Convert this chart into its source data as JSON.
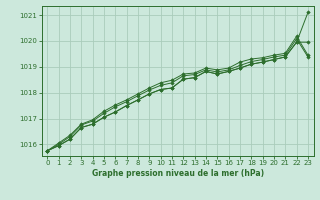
{
  "title": "Graphe pression niveau de la mer (hPa)",
  "background_color": "#cce8dc",
  "grid_color": "#aaccbb",
  "line_color": "#2d6e2d",
  "marker_color": "#2d6e2d",
  "xlim": [
    -0.5,
    23.5
  ],
  "ylim": [
    1015.55,
    1021.35
  ],
  "yticks": [
    1016,
    1017,
    1018,
    1019,
    1020,
    1021
  ],
  "xticks": [
    0,
    1,
    2,
    3,
    4,
    5,
    6,
    7,
    8,
    9,
    10,
    11,
    12,
    13,
    14,
    15,
    16,
    17,
    18,
    19,
    20,
    21,
    22,
    23
  ],
  "series": [
    [
      1015.75,
      1015.95,
      1016.2,
      1016.65,
      1016.78,
      1017.05,
      1017.25,
      1017.5,
      1017.72,
      1017.95,
      1018.12,
      1018.18,
      1018.52,
      1018.58,
      1018.82,
      1018.72,
      1018.82,
      1018.95,
      1019.1,
      1019.18,
      1019.28,
      1019.38,
      1019.95,
      1021.1
    ],
    [
      1015.75,
      1015.95,
      1016.2,
      1016.65,
      1016.78,
      1017.05,
      1017.25,
      1017.5,
      1017.72,
      1017.95,
      1018.12,
      1018.18,
      1018.52,
      1018.58,
      1018.82,
      1018.72,
      1018.82,
      1018.95,
      1019.1,
      1019.18,
      1019.28,
      1019.38,
      1019.95,
      1019.95
    ],
    [
      1015.75,
      1016.0,
      1016.3,
      1016.75,
      1016.9,
      1017.2,
      1017.45,
      1017.65,
      1017.88,
      1018.1,
      1018.28,
      1018.38,
      1018.65,
      1018.7,
      1018.88,
      1018.8,
      1018.88,
      1019.05,
      1019.2,
      1019.28,
      1019.38,
      1019.45,
      1020.08,
      1019.38
    ],
    [
      1015.75,
      1016.05,
      1016.35,
      1016.78,
      1016.95,
      1017.28,
      1017.52,
      1017.72,
      1017.95,
      1018.18,
      1018.38,
      1018.48,
      1018.72,
      1018.76,
      1018.95,
      1018.88,
      1018.95,
      1019.18,
      1019.3,
      1019.35,
      1019.45,
      1019.52,
      1020.18,
      1019.45
    ]
  ]
}
